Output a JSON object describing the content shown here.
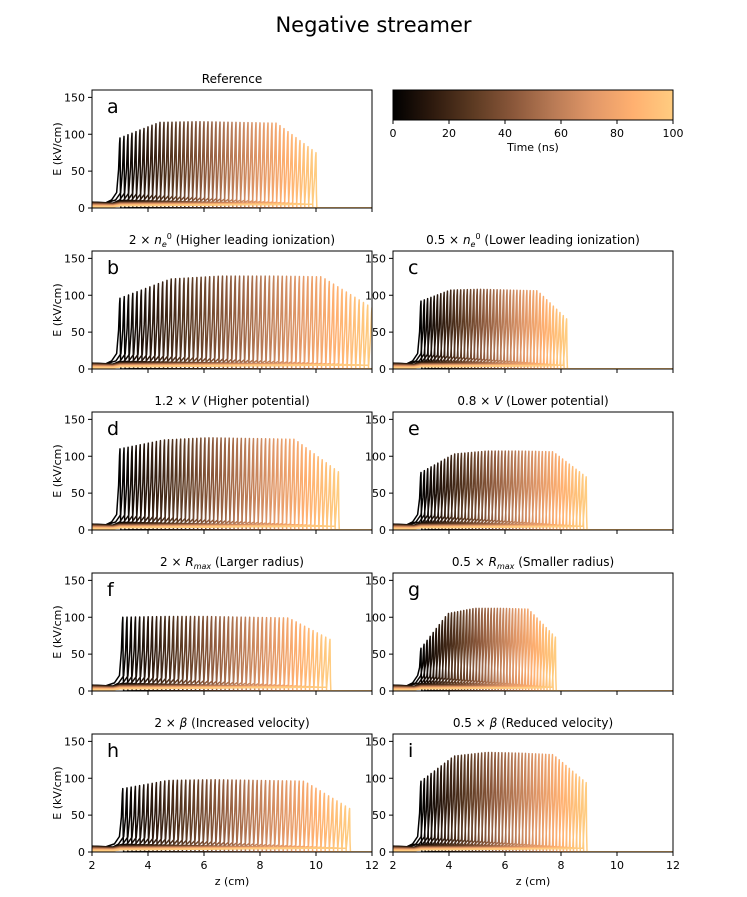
{
  "figure": {
    "title": "Negative streamer"
  },
  "colorbar": {
    "label": "Time (ns)",
    "ticks": [
      "0",
      "20",
      "40",
      "60",
      "80",
      "100"
    ],
    "range": [
      0,
      100
    ],
    "colormap": [
      "#000000",
      "#2e1a0e",
      "#5c3a22",
      "#8a573a",
      "#b87a55",
      "#e29868",
      "#ffb070",
      "#ffcc80"
    ]
  },
  "chart_data": [
    {
      "type": "line",
      "panel": "a",
      "title": "Reference",
      "title_parts": [
        {
          "t": "Reference"
        }
      ],
      "xlabel": "",
      "ylabel": "E (kV/cm)",
      "xlim": [
        2,
        12
      ],
      "ylim": [
        0,
        160
      ],
      "x_ticks": [],
      "y_ticks": [
        0,
        50,
        100,
        150
      ],
      "n_curves": 50,
      "front_start": 3.0,
      "front_end": 10.0,
      "peaks": [
        95,
        116,
        117,
        116,
        115,
        75
      ]
    },
    {
      "type": "line",
      "panel": "b",
      "title": "2 × n_e^0 (Higher leading ionization)",
      "title_parts": [
        {
          "t": "2 × "
        },
        {
          "t": "n",
          "i": 1
        },
        {
          "t": "e",
          "i": 1,
          "sub": 1
        },
        {
          "t": "0",
          "sup": 1
        },
        {
          "t": " (Higher leading ionization)"
        }
      ],
      "xlabel": "",
      "ylabel": "E (kV/cm)",
      "xlim": [
        2,
        12
      ],
      "ylim": [
        0,
        160
      ],
      "x_ticks": [],
      "y_ticks": [
        0,
        50,
        100,
        150
      ],
      "n_curves": 60,
      "front_start": 3.0,
      "front_end": 12.0,
      "peaks": [
        96,
        122,
        126,
        126,
        125,
        83
      ]
    },
    {
      "type": "line",
      "panel": "c",
      "title": "0.5 × n_e^0 (Lower leading ionization)",
      "title_parts": [
        {
          "t": "0.5 × "
        },
        {
          "t": "n",
          "i": 1
        },
        {
          "t": "e",
          "i": 1,
          "sub": 1
        },
        {
          "t": "0",
          "sup": 1
        },
        {
          "t": " (Lower leading ionization)"
        }
      ],
      "xlabel": "",
      "ylabel": "",
      "xlim": [
        2,
        12
      ],
      "ylim": [
        0,
        160
      ],
      "x_ticks": [],
      "y_ticks": [
        0,
        50,
        100,
        150
      ],
      "n_curves": 45,
      "front_start": 3.0,
      "front_end": 8.2,
      "peaks": [
        92,
        107,
        108,
        107,
        106,
        68
      ]
    },
    {
      "type": "line",
      "panel": "d",
      "title": "1.2 × V (Higher potential)",
      "title_parts": [
        {
          "t": "1.2 × "
        },
        {
          "t": "V",
          "i": 1
        },
        {
          "t": " (Higher potential)"
        }
      ],
      "xlabel": "",
      "ylabel": "E (kV/cm)",
      "xlim": [
        2,
        12
      ],
      "ylim": [
        0,
        160
      ],
      "x_ticks": [],
      "y_ticks": [
        0,
        50,
        100,
        150
      ],
      "n_curves": 55,
      "front_start": 3.0,
      "front_end": 10.8,
      "peaks": [
        110,
        122,
        125,
        124,
        123,
        79
      ]
    },
    {
      "type": "line",
      "panel": "e",
      "title": "0.8 × V (Lower potential)",
      "title_parts": [
        {
          "t": "0.8 × "
        },
        {
          "t": "V",
          "i": 1
        },
        {
          "t": " (Lower potential)"
        }
      ],
      "xlabel": "",
      "ylabel": "",
      "xlim": [
        2,
        12
      ],
      "ylim": [
        0,
        160
      ],
      "x_ticks": [],
      "y_ticks": [
        0,
        50,
        100,
        150
      ],
      "n_curves": 50,
      "front_start": 3.0,
      "front_end": 8.9,
      "peaks": [
        78,
        103,
        107,
        107,
        106,
        72
      ]
    },
    {
      "type": "line",
      "panel": "f",
      "title": "2 × R_max (Larger radius)",
      "title_parts": [
        {
          "t": "2 × "
        },
        {
          "t": "R",
          "i": 1
        },
        {
          "t": "max",
          "i": 1,
          "sub": 1
        },
        {
          "t": " (Larger radius)"
        }
      ],
      "xlabel": "",
      "ylabel": "E (kV/cm)",
      "xlim": [
        2,
        12
      ],
      "ylim": [
        0,
        160
      ],
      "x_ticks": [],
      "y_ticks": [
        0,
        50,
        100,
        150
      ],
      "n_curves": 50,
      "front_start": 3.1,
      "front_end": 10.5,
      "peaks": [
        100,
        101,
        101,
        100,
        99,
        70
      ]
    },
    {
      "type": "line",
      "panel": "g",
      "title": "0.5 × R_max (Smaller radius)",
      "title_parts": [
        {
          "t": "0.5 × "
        },
        {
          "t": "R",
          "i": 1
        },
        {
          "t": "max",
          "i": 1,
          "sub": 1
        },
        {
          "t": " (Smaller radius)"
        }
      ],
      "xlabel": "",
      "ylabel": "",
      "xlim": [
        2,
        12
      ],
      "ylim": [
        0,
        160
      ],
      "x_ticks": [],
      "y_ticks": [
        0,
        50,
        100,
        150
      ],
      "n_curves": 45,
      "front_start": 3.0,
      "front_end": 7.8,
      "peaks": [
        58,
        105,
        112,
        112,
        111,
        73
      ]
    },
    {
      "type": "line",
      "panel": "h",
      "title": "2 × β (Increased velocity)",
      "title_parts": [
        {
          "t": "2 × "
        },
        {
          "t": "β",
          "i": 1
        },
        {
          "t": " (Increased velocity)"
        }
      ],
      "xlabel": "z (cm)",
      "ylabel": "E (kV/cm)",
      "xlim": [
        2,
        12
      ],
      "ylim": [
        0,
        160
      ],
      "x_ticks": [
        2,
        4,
        6,
        8,
        10,
        12
      ],
      "y_ticks": [
        0,
        50,
        100,
        150
      ],
      "n_curves": 55,
      "front_start": 3.1,
      "front_end": 11.2,
      "peaks": [
        86,
        97,
        98,
        97,
        96,
        59
      ]
    },
    {
      "type": "line",
      "panel": "i",
      "title": "0.5 × β (Reduced velocity)",
      "title_parts": [
        {
          "t": "0.5 × "
        },
        {
          "t": "β",
          "i": 1
        },
        {
          "t": " (Reduced velocity)"
        }
      ],
      "xlabel": "z (cm)",
      "ylabel": "",
      "xlim": [
        2,
        12
      ],
      "ylim": [
        0,
        160
      ],
      "x_ticks": [
        2,
        4,
        6,
        8,
        10,
        12
      ],
      "y_ticks": [
        0,
        50,
        100,
        150
      ],
      "n_curves": 50,
      "front_start": 3.0,
      "front_end": 8.9,
      "peaks": [
        96,
        130,
        135,
        134,
        132,
        94
      ]
    }
  ]
}
